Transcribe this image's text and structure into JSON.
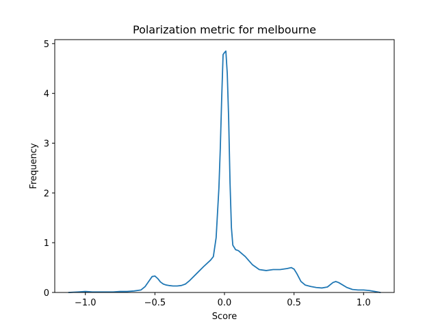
{
  "chart_data": {
    "type": "line",
    "title": "Polarization metric for melbourne",
    "xlabel": "Score",
    "ylabel": "Frequency",
    "xlim": [
      -1.22,
      1.22
    ],
    "ylim": [
      0,
      5.08
    ],
    "xticks": [
      -1.0,
      -0.5,
      0.0,
      0.5,
      1.0
    ],
    "xtick_labels": [
      "−1.0",
      "−0.5",
      "0.0",
      "0.5",
      "1.0"
    ],
    "yticks": [
      0,
      1,
      2,
      3,
      4,
      5
    ],
    "ytick_labels": [
      "0",
      "1",
      "2",
      "3",
      "4",
      "5"
    ],
    "grid": false,
    "legend": "none",
    "series": [
      {
        "color": "#1f77b4",
        "x": [
          -1.12,
          -1.05,
          -1.0,
          -0.95,
          -0.9,
          -0.85,
          -0.8,
          -0.75,
          -0.7,
          -0.65,
          -0.6,
          -0.57,
          -0.54,
          -0.52,
          -0.5,
          -0.48,
          -0.46,
          -0.44,
          -0.42,
          -0.4,
          -0.37,
          -0.34,
          -0.31,
          -0.28,
          -0.25,
          -0.2,
          -0.15,
          -0.1,
          -0.08,
          -0.06,
          -0.04,
          -0.03,
          -0.02,
          -0.01,
          0.0,
          0.01,
          0.02,
          0.03,
          0.04,
          0.05,
          0.06,
          0.08,
          0.1,
          0.15,
          0.2,
          0.25,
          0.3,
          0.35,
          0.4,
          0.45,
          0.48,
          0.5,
          0.52,
          0.55,
          0.58,
          0.62,
          0.66,
          0.7,
          0.74,
          0.78,
          0.8,
          0.82,
          0.85,
          0.88,
          0.92,
          0.96,
          1.0,
          1.04,
          1.08,
          1.12
        ],
        "y": [
          0.0,
          0.01,
          0.02,
          0.01,
          0.01,
          0.01,
          0.01,
          0.02,
          0.02,
          0.03,
          0.05,
          0.12,
          0.24,
          0.32,
          0.33,
          0.28,
          0.21,
          0.17,
          0.15,
          0.14,
          0.13,
          0.13,
          0.14,
          0.17,
          0.24,
          0.38,
          0.52,
          0.65,
          0.72,
          1.1,
          2.1,
          2.9,
          3.9,
          4.78,
          4.82,
          4.85,
          4.4,
          3.5,
          2.2,
          1.3,
          0.95,
          0.86,
          0.84,
          0.72,
          0.56,
          0.46,
          0.44,
          0.46,
          0.46,
          0.48,
          0.5,
          0.47,
          0.38,
          0.22,
          0.15,
          0.12,
          0.1,
          0.09,
          0.11,
          0.2,
          0.22,
          0.2,
          0.15,
          0.1,
          0.06,
          0.05,
          0.05,
          0.04,
          0.02,
          0.0
        ]
      }
    ]
  }
}
